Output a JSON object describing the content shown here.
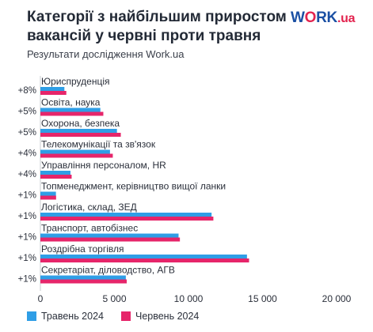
{
  "header": {
    "title": "Категорії з найбільшим приростом вакансій у червні проти травня",
    "subtitle": "Результати дослідження Work.ua",
    "logo": {
      "part1": "W",
      "part2": "O",
      "part3": "RK",
      "part4": ".ua"
    }
  },
  "colors": {
    "may": "#2f9ee6",
    "june": "#e6256a",
    "axis": "#c9ccd2",
    "text": "#2a2f3a"
  },
  "chart_data": {
    "type": "bar",
    "orientation": "horizontal",
    "categories": [
      "Юриспруденція",
      "Освіта, наука",
      "Охорона, безпека",
      "Телекомунікації та зв'язок",
      "Управління персоналом, HR",
      "Топменеджмент, керівництво вищої ланки",
      "Логістика, склад, ЗЕД",
      "Транспорт, автобізнес",
      "Роздрібна торгівля",
      "Секретаріат, діловодство, АГВ"
    ],
    "growth_labels": [
      "+8%",
      "+5%",
      "+5%",
      "+4%",
      "+4%",
      "+1%",
      "+1%",
      "+1%",
      "+1%",
      "+1%"
    ],
    "series": [
      {
        "name": "Травень 2024",
        "values": [
          1620,
          4050,
          5170,
          4700,
          2030,
          1050,
          11560,
          9330,
          13950,
          5770
        ]
      },
      {
        "name": "Червень 2024",
        "values": [
          1750,
          4250,
          5430,
          4890,
          2110,
          1060,
          11680,
          9420,
          14090,
          5830
        ]
      }
    ],
    "xlim": [
      0,
      20000
    ],
    "x_ticks": [
      0,
      5000,
      10000,
      15000,
      20000
    ],
    "x_tick_labels": [
      "0",
      "5 000",
      "10 000",
      "15 000",
      "20 000"
    ],
    "legend_position": "bottom-left",
    "grid": false
  }
}
